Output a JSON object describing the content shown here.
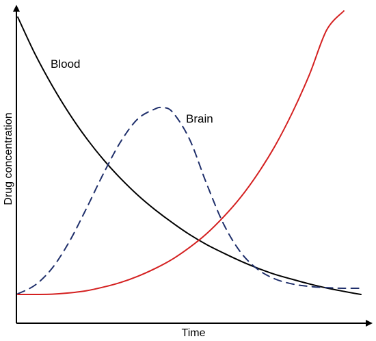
{
  "chart_data": {
    "type": "line",
    "title": "",
    "xlabel": "Time",
    "ylabel": "Drug concentration",
    "xlim": [
      0,
      100
    ],
    "ylim": [
      0,
      100
    ],
    "grid": false,
    "legend": "none",
    "series": [
      {
        "name": "Blood",
        "color": "#000000",
        "dash": "solid",
        "x": [
          0,
          5,
          10,
          15,
          20,
          25,
          30,
          35,
          40,
          45,
          50,
          55,
          60,
          65,
          70,
          75,
          80,
          85,
          90,
          95,
          100
        ],
        "y": [
          98,
          86.1,
          75.8,
          66.7,
          58.7,
          51.7,
          45.6,
          40.2,
          35.5,
          31.3,
          27.5,
          24.2,
          21.4,
          18.8,
          16.5,
          14.5,
          12.9,
          11.4,
          10.1,
          9.0,
          8.0
        ]
      },
      {
        "name": "Brain",
        "color": "#1f2f6b",
        "dash": "dashed",
        "x": [
          0,
          5,
          10,
          15,
          20,
          25,
          30,
          35,
          40,
          42,
          45,
          50,
          55,
          60,
          65,
          70,
          75,
          80,
          85,
          90,
          95,
          100
        ],
        "y": [
          8.2,
          11.0,
          16.5,
          25.1,
          35.9,
          47.3,
          57.6,
          65.0,
          68.2,
          68.6,
          67.3,
          58.5,
          44.0,
          30.8,
          21.6,
          16.1,
          13.0,
          11.4,
          10.6,
          10.2,
          10.0,
          10.0
        ]
      },
      {
        "name": "",
        "color": "#d42020",
        "dash": "solid",
        "x": [
          0,
          5,
          10,
          15,
          20,
          25,
          30,
          35,
          40,
          45,
          50,
          55,
          60,
          65,
          70,
          75,
          80,
          85,
          90,
          95
        ],
        "y": [
          8.0,
          8.0,
          8.1,
          8.5,
          9.2,
          10.4,
          11.9,
          13.9,
          16.4,
          19.4,
          23.2,
          27.7,
          33.2,
          39.6,
          47.3,
          56.3,
          67.0,
          79.4,
          93.8,
          100.0
        ]
      }
    ],
    "annotations": [
      {
        "text": "Blood",
        "series": "Blood"
      },
      {
        "text": "Brain",
        "series": "Brain"
      }
    ]
  }
}
